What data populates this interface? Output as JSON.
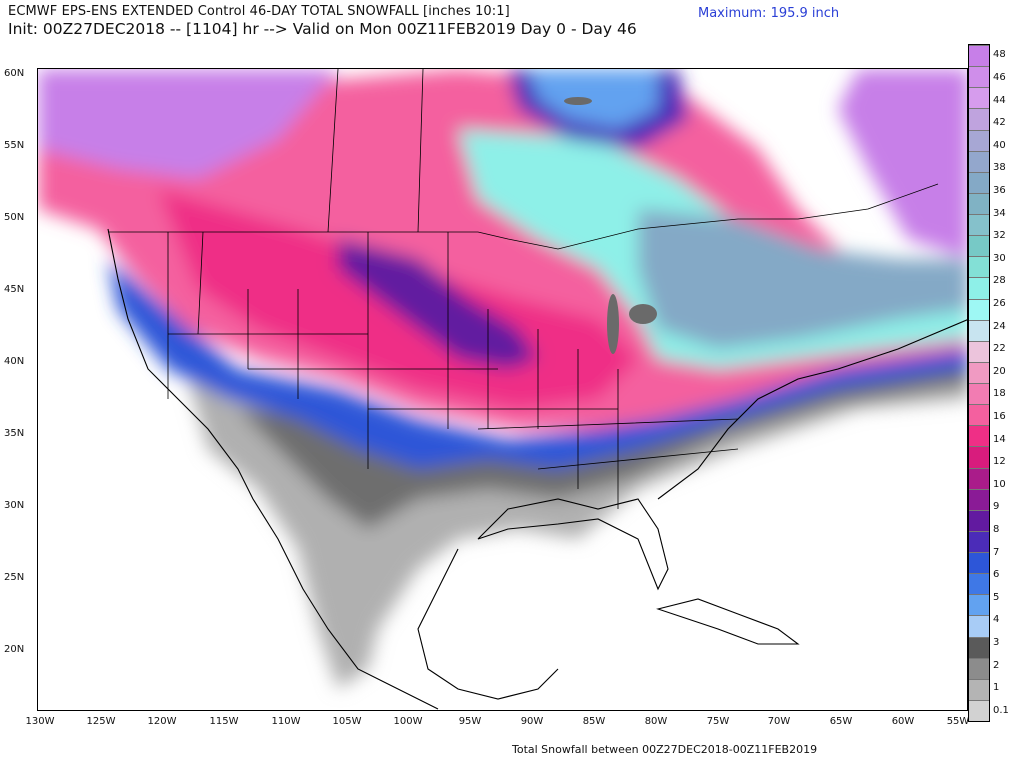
{
  "header": {
    "title_line1": "ECMWF EPS-ENS EXTENDED Control 46-DAY TOTAL SNOWFALL [inches 10:1]",
    "title_line2": "Init: 00Z27DEC2018 -- [1104] hr --> Valid on Mon 00Z11FEB2019  Day 0 - Day 46",
    "maximum": "Maximum: 195.9 inch"
  },
  "axes": {
    "lat_labels": [
      "60N",
      "55N",
      "50N",
      "45N",
      "40N",
      "35N",
      "30N",
      "25N",
      "20N"
    ],
    "lon_labels": [
      "130W",
      "125W",
      "120W",
      "115W",
      "110W",
      "105W",
      "100W",
      "95W",
      "90W",
      "85W",
      "80W",
      "75W",
      "70W",
      "65W",
      "60W",
      "55W"
    ]
  },
  "colorbar": {
    "labels": [
      "48",
      "46",
      "44",
      "42",
      "40",
      "38",
      "36",
      "34",
      "32",
      "30",
      "28",
      "26",
      "24",
      "22",
      "20",
      "18",
      "16",
      "14",
      "12",
      "10",
      "9",
      "8",
      "7",
      "6",
      "5",
      "4",
      "3",
      "2",
      "1",
      "0.1"
    ],
    "colors": [
      "#c77fe8",
      "#cf8eea",
      "#d69ced",
      "#bfa3de",
      "#a7a7d4",
      "#93a7cc",
      "#84a9c6",
      "#80b2c4",
      "#85c1cb",
      "#77c9c6",
      "#83e0d6",
      "#8ef0e8",
      "#9ef8f4",
      "#c8e4f0",
      "#ecc4dc",
      "#f09ac2",
      "#f27cb2",
      "#f4609f",
      "#ef2f86",
      "#d81c7d",
      "#aa1c8a",
      "#8a1b96",
      "#621aa0",
      "#4b2cb8",
      "#2d56d8",
      "#3f78e6",
      "#62a2f0",
      "#a8ccf6",
      "#5a5a5a",
      "#8c8c8c",
      "#b4b4b4",
      "#d2d2d2"
    ]
  },
  "footer": "Total Snowfall between 00Z27DEC2018-00Z11FEB2019"
}
